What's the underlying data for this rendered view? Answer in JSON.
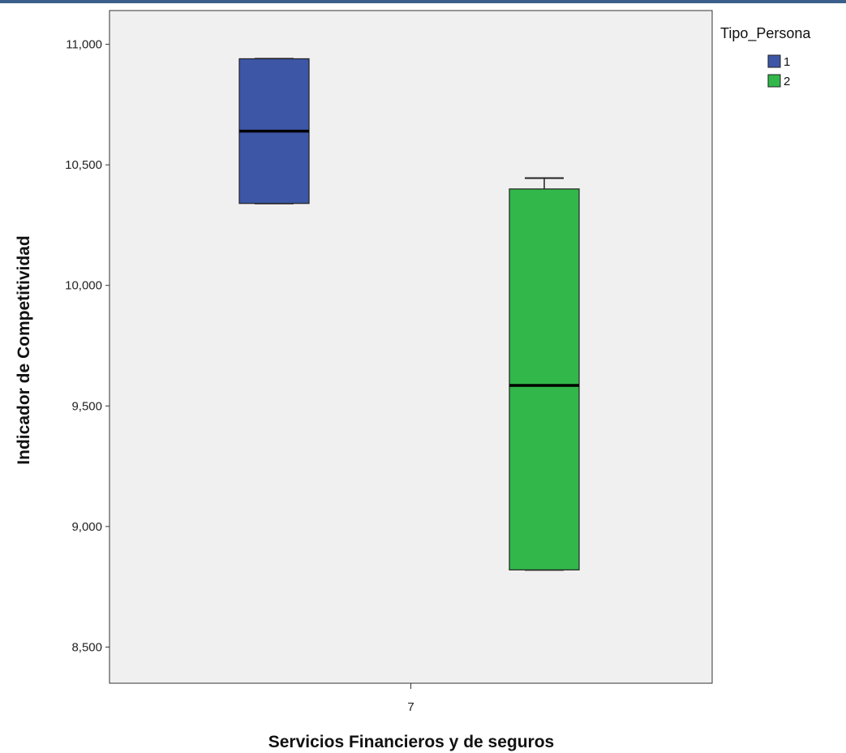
{
  "chart_data": {
    "type": "boxplot",
    "xlabel": "Servicios Financieros y de seguros",
    "ylabel": "Indicador de Competitividad",
    "categories": [
      "7"
    ],
    "ylim": [
      8350,
      11140
    ],
    "yticks": [
      8500,
      9000,
      9500,
      10000,
      10500,
      11000
    ],
    "ytick_labels": [
      "8,500",
      "9,000",
      "9,500",
      "10,000",
      "10,500",
      "11,000"
    ],
    "legend": {
      "title": "Tipo_Persona",
      "placement": "top-right",
      "entries": [
        {
          "label": "1",
          "color": "#3d56a6"
        },
        {
          "label": "2",
          "color": "#31b74a"
        }
      ]
    },
    "series": [
      {
        "name": "1",
        "color": "#3d56a6",
        "min": 10340,
        "q1": 10340,
        "median": 10640,
        "q3": 10940,
        "max": 10940
      },
      {
        "name": "2",
        "color": "#31b74a",
        "min": 8820,
        "q1": 8820,
        "median": 9585,
        "q3": 10400,
        "max": 10445
      }
    ],
    "plot_background": "#f0f0f0"
  }
}
